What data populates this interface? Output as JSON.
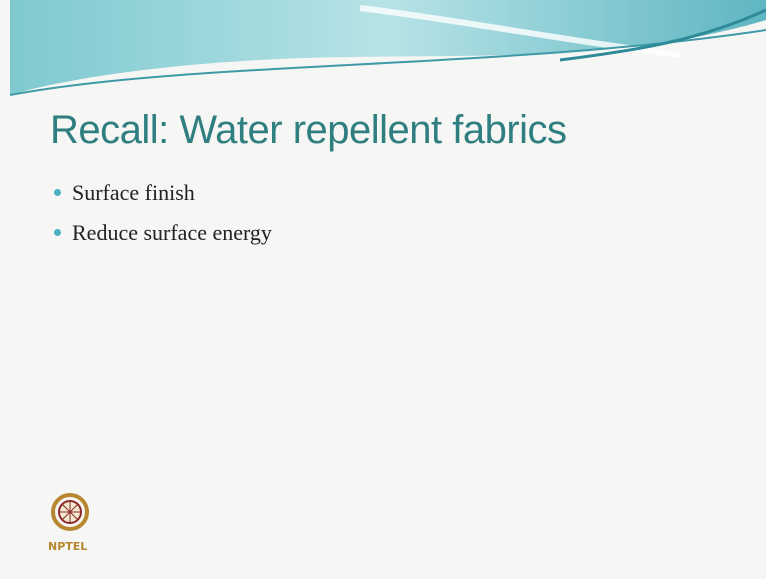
{
  "slide": {
    "title": "Recall: Water repellent fabrics",
    "bullets": [
      "Surface finish",
      "Reduce surface energy"
    ],
    "logo_text": "NPTEL"
  }
}
